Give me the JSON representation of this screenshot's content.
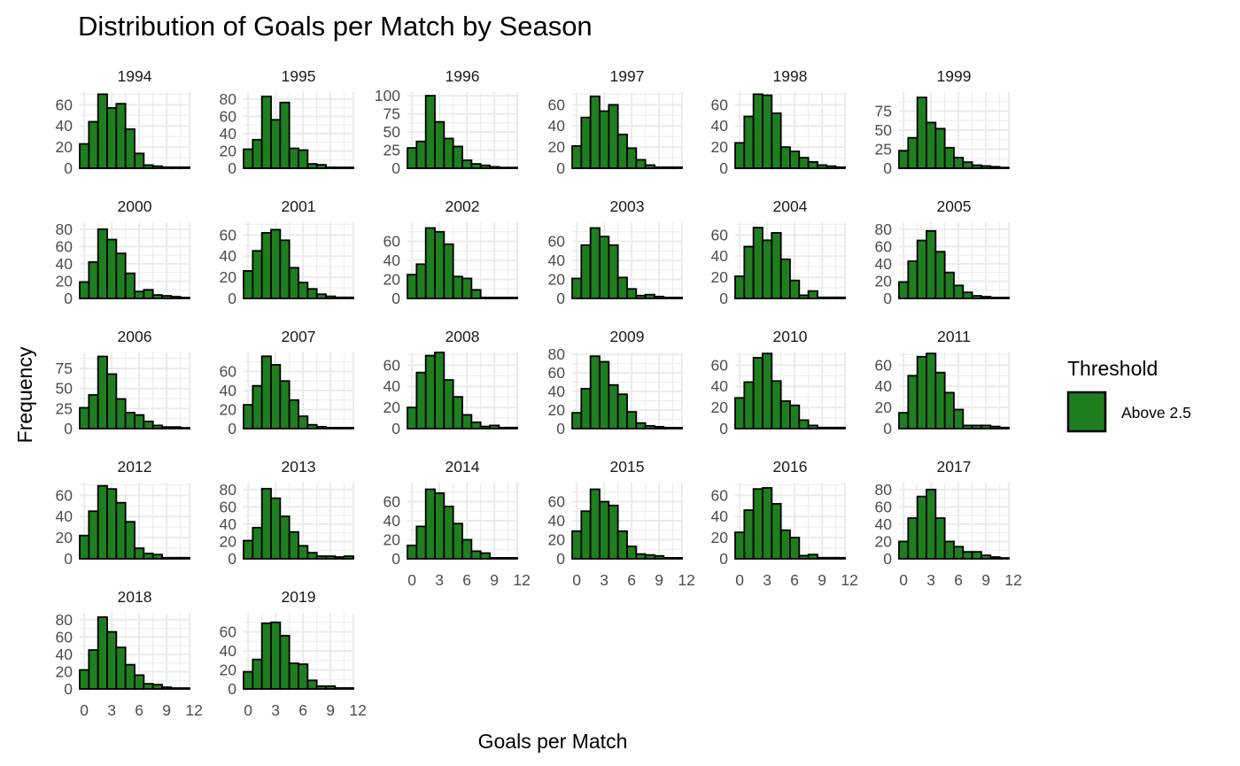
{
  "colors": {
    "bar_fill": "#1f7e1f",
    "bar_stroke": "#000000",
    "grid": "#ebebeb",
    "background": "#ffffff"
  },
  "chart_data": {
    "type": "bar",
    "subtype": "faceted-histogram",
    "title": "Distribution of Goals per Match by Season",
    "xlabel": "Goals per Match",
    "ylabel": "Frequency",
    "legend": {
      "title": "Threshold",
      "entries": [
        "Above 2.5"
      ],
      "position": "right"
    },
    "grid": true,
    "facet_layout": {
      "nrow": 5,
      "ncol": 6
    },
    "bins": [
      0,
      1,
      2,
      3,
      4,
      5,
      6,
      7,
      8,
      9,
      10,
      11
    ],
    "xlim": [
      -0.5,
      11.5
    ],
    "x_ticks": [
      0,
      3,
      6,
      9,
      12
    ],
    "panels": [
      {
        "season": "1994",
        "ymax": 72,
        "y_ticks": [
          0,
          20,
          40,
          60
        ],
        "values": [
          23,
          44,
          70,
          57,
          61,
          37,
          14,
          3,
          2,
          1,
          1,
          1
        ]
      },
      {
        "season": "1995",
        "ymax": 88,
        "y_ticks": [
          0,
          20,
          40,
          60,
          80
        ],
        "values": [
          22,
          33,
          83,
          56,
          76,
          23,
          21,
          5,
          4,
          1,
          1,
          1
        ]
      },
      {
        "season": "1996",
        "ymax": 105,
        "y_ticks": [
          0,
          25,
          50,
          75,
          100
        ],
        "values": [
          28,
          37,
          100,
          64,
          41,
          30,
          11,
          6,
          4,
          2,
          1,
          1
        ]
      },
      {
        "season": "1997",
        "ymax": 72,
        "y_ticks": [
          0,
          20,
          40,
          60
        ],
        "values": [
          21,
          48,
          68,
          54,
          60,
          32,
          19,
          8,
          3,
          1,
          1,
          1
        ]
      },
      {
        "season": "1998",
        "ymax": 72,
        "y_ticks": [
          0,
          20,
          40,
          60
        ],
        "values": [
          24,
          49,
          70,
          69,
          52,
          20,
          16,
          10,
          6,
          3,
          2,
          1
        ]
      },
      {
        "season": "1999",
        "ymax": 100,
        "y_ticks": [
          0,
          25,
          50,
          75
        ],
        "values": [
          23,
          40,
          93,
          60,
          52,
          27,
          14,
          8,
          4,
          3,
          2,
          1
        ]
      },
      {
        "season": "2000",
        "ymax": 88,
        "y_ticks": [
          0,
          20,
          40,
          60,
          80
        ],
        "values": [
          19,
          42,
          80,
          68,
          52,
          29,
          8,
          10,
          4,
          3,
          2,
          1
        ]
      },
      {
        "season": "2001",
        "ymax": 72,
        "y_ticks": [
          0,
          20,
          40,
          60
        ],
        "values": [
          26,
          45,
          62,
          65,
          55,
          29,
          15,
          9,
          4,
          2,
          1,
          1
        ]
      },
      {
        "season": "2002",
        "ymax": 80,
        "y_ticks": [
          0,
          20,
          40,
          60
        ],
        "values": [
          25,
          36,
          74,
          70,
          57,
          23,
          21,
          9,
          1,
          1,
          1,
          1
        ]
      },
      {
        "season": "2003",
        "ymax": 80,
        "y_ticks": [
          0,
          20,
          40,
          60
        ],
        "values": [
          21,
          56,
          74,
          65,
          56,
          22,
          10,
          3,
          4,
          2,
          1,
          1
        ]
      },
      {
        "season": "2004",
        "ymax": 72,
        "y_ticks": [
          0,
          20,
          40,
          60
        ],
        "values": [
          21,
          49,
          67,
          55,
          62,
          37,
          17,
          3,
          7,
          1,
          1,
          1
        ]
      },
      {
        "season": "2005",
        "ymax": 88,
        "y_ticks": [
          0,
          20,
          40,
          60,
          80
        ],
        "values": [
          19,
          43,
          67,
          78,
          54,
          30,
          15,
          7,
          3,
          2,
          1,
          1
        ]
      },
      {
        "season": "2006",
        "ymax": 95,
        "y_ticks": [
          0,
          25,
          50,
          75
        ],
        "values": [
          26,
          42,
          90,
          68,
          37,
          20,
          17,
          9,
          4,
          2,
          2,
          1
        ]
      },
      {
        "season": "2007",
        "ymax": 80,
        "y_ticks": [
          0,
          20,
          40,
          60
        ],
        "values": [
          25,
          45,
          76,
          67,
          50,
          30,
          13,
          4,
          2,
          1,
          1,
          1
        ]
      },
      {
        "season": "2008",
        "ymax": 72,
        "y_ticks": [
          0,
          20,
          40,
          60
        ],
        "values": [
          20,
          53,
          69,
          72,
          46,
          30,
          13,
          6,
          2,
          3,
          1,
          1
        ]
      },
      {
        "season": "2009",
        "ymax": 82,
        "y_ticks": [
          0,
          20,
          40,
          60,
          80
        ],
        "values": [
          17,
          43,
          78,
          72,
          47,
          37,
          18,
          6,
          3,
          2,
          1,
          1
        ]
      },
      {
        "season": "2010",
        "ymax": 72,
        "y_ticks": [
          0,
          20,
          40,
          60
        ],
        "values": [
          29,
          44,
          67,
          71,
          45,
          26,
          22,
          8,
          3,
          1,
          1,
          1
        ]
      },
      {
        "season": "2011",
        "ymax": 72,
        "y_ticks": [
          0,
          20,
          40,
          60
        ],
        "values": [
          15,
          50,
          68,
          71,
          53,
          34,
          18,
          3,
          3,
          3,
          2,
          1
        ]
      },
      {
        "season": "2012",
        "ymax": 72,
        "y_ticks": [
          0,
          20,
          40,
          60
        ],
        "values": [
          22,
          45,
          69,
          66,
          53,
          35,
          10,
          5,
          4,
          1,
          1,
          1
        ]
      },
      {
        "season": "2013",
        "ymax": 88,
        "y_ticks": [
          0,
          20,
          40,
          60,
          80
        ],
        "values": [
          21,
          36,
          81,
          70,
          49,
          31,
          15,
          7,
          3,
          3,
          2,
          3
        ]
      },
      {
        "season": "2014",
        "ymax": 80,
        "y_ticks": [
          0,
          20,
          40,
          60
        ],
        "values": [
          14,
          34,
          73,
          69,
          55,
          37,
          20,
          8,
          6,
          1,
          1,
          1
        ]
      },
      {
        "season": "2015",
        "ymax": 80,
        "y_ticks": [
          0,
          20,
          40,
          60
        ],
        "values": [
          29,
          50,
          73,
          60,
          56,
          29,
          13,
          5,
          4,
          3,
          1,
          1
        ]
      },
      {
        "season": "2016",
        "ymax": 72,
        "y_ticks": [
          0,
          20,
          40,
          60
        ],
        "values": [
          25,
          46,
          66,
          67,
          52,
          27,
          20,
          3,
          4,
          1,
          1,
          1
        ]
      },
      {
        "season": "2017",
        "ymax": 88,
        "y_ticks": [
          0,
          20,
          40,
          60,
          80
        ],
        "values": [
          20,
          47,
          72,
          80,
          47,
          20,
          14,
          8,
          8,
          4,
          2,
          1
        ]
      },
      {
        "season": "2018",
        "ymax": 88,
        "y_ticks": [
          0,
          20,
          40,
          60,
          80
        ],
        "values": [
          22,
          45,
          83,
          66,
          48,
          28,
          16,
          6,
          5,
          2,
          1,
          1
        ]
      },
      {
        "season": "2019",
        "ymax": 80,
        "y_ticks": [
          0,
          20,
          40,
          60
        ],
        "values": [
          18,
          31,
          69,
          70,
          56,
          27,
          26,
          9,
          3,
          3,
          1,
          1
        ]
      }
    ]
  }
}
